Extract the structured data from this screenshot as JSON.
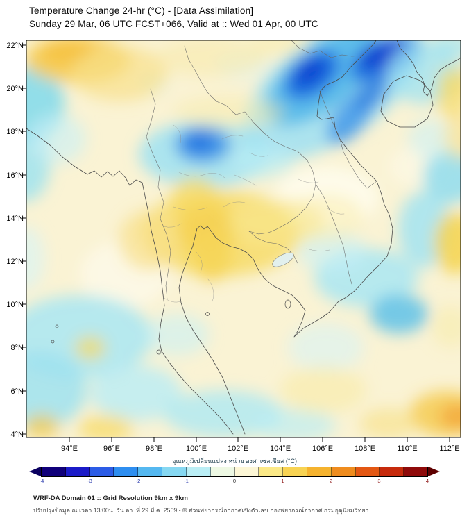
{
  "header": {
    "title": "Temperature Change 24-hr (°C) - [Data Assimilation]",
    "subtitle": "Sunday 29 Mar, 06 UTC FCST+066, Valid at :: Wed 01 Apr, 00 UTC"
  },
  "chart_data": {
    "type": "heatmap",
    "title": "Temperature Change 24-hr (°C) - [Data Assimilation]",
    "subtitle": "Sunday 29 Mar, 06 UTC FCST+066, Valid at :: Wed 01 Apr, 00 UTC",
    "region": "Thailand / Indochina (WRF-DA Domain 01)",
    "x_ticks": [
      "94°E",
      "96°E",
      "98°E",
      "100°E",
      "102°E",
      "104°E",
      "106°E",
      "108°E",
      "110°E",
      "112°E"
    ],
    "y_ticks": [
      "22°N",
      "20°N",
      "18°N",
      "16°N",
      "14°N",
      "12°N",
      "10°N",
      "8°N",
      "6°N",
      "4°N"
    ],
    "x_range_deg_e": [
      92,
      112.5
    ],
    "y_range_deg_n": [
      4,
      22.2
    ],
    "grid": false,
    "colorbar": {
      "label": "อุณหภูมิเปลี่ยนแปลง หน่วย องศาเซลเซียส (°C)",
      "min": -4,
      "max": 4,
      "tick_labels": [
        "-4",
        "-3",
        "-2",
        "-1",
        "0",
        "1",
        "2",
        "3",
        "4"
      ],
      "segment_colors": [
        "#10007a",
        "#1b1bc8",
        "#2c5ce6",
        "#2e8ef0",
        "#55b8f0",
        "#86d8f2",
        "#baeef5",
        "#eef9e4",
        "#fdf7d6",
        "#fbe987",
        "#f8d353",
        "#f5b32f",
        "#ef8c1e",
        "#e35713",
        "#c62a0c",
        "#8f0a0a"
      ],
      "left_arrow_color": "#0b0060",
      "right_arrow_color": "#5e0000",
      "negative_label_color": "#2233aa",
      "zero_label_color": "#333333",
      "positive_label_color": "#8b1111"
    },
    "anomaly_centers": [
      {
        "lon_e": 94.8,
        "lat_n": 21.7,
        "delta_c": 2.0,
        "note": "warm spot, NW corner (Myanmar)"
      },
      {
        "lon_e": 104.8,
        "lat_n": 21.3,
        "delta_c": -3.5,
        "note": "strong cooling, northern Vietnam"
      },
      {
        "lon_e": 108.6,
        "lat_n": 21.6,
        "delta_c": -3.5,
        "note": "strong cooling, Gulf of Tonkin"
      },
      {
        "lon_e": 107.5,
        "lat_n": 18.6,
        "delta_c": -2.0,
        "note": "cooling streak toward central Vietnam coast"
      },
      {
        "lon_e": 100.3,
        "lat_n": 17.5,
        "delta_c": -2.0,
        "note": "cooling, northern Thailand"
      },
      {
        "lon_e": 100.3,
        "lat_n": 13.8,
        "delta_c": 2.0,
        "note": "warming, central Thailand"
      },
      {
        "lon_e": 92.5,
        "lat_n": 19.3,
        "delta_c": -1.0,
        "note": "cool patch, Bay of Bengal (left edge)"
      },
      {
        "lon_e": 111.5,
        "lat_n": 15.8,
        "delta_c": -1.0,
        "note": "cool patch, right edge"
      },
      {
        "lon_e": 109.7,
        "lat_n": 9.5,
        "delta_c": -1.5,
        "note": "cool blob, South China Sea"
      },
      {
        "lon_e": 106.0,
        "lat_n": 11.5,
        "delta_c": -1.0,
        "note": "cool band, southern Vietnam/Cambodia"
      },
      {
        "lon_e": 94.5,
        "lat_n": 8.5,
        "delta_c": -1.0,
        "note": "cool area, Andaman Sea / lower left"
      },
      {
        "lon_e": 101.5,
        "lat_n": 4.8,
        "delta_c": -1.0,
        "note": "cool area, lower Malay peninsula"
      },
      {
        "lon_e": 111.8,
        "lat_n": 5.2,
        "delta_c": 1.5,
        "note": "warm patch, bottom-right corner"
      },
      {
        "lon_e": 112.3,
        "lat_n": 12.8,
        "delta_c": 1.0,
        "note": "warm patch, right edge"
      }
    ]
  },
  "footer": {
    "line1": "WRF-DA Domain 01 :: Grid Resolution 9km x 9km",
    "line2": "ปรับปรุงข้อมูล ณ เวลา 13:00น. วัน อา. ที่ 29 มี.ค. 2569 - © ส่วนพยากรณ์อากาศเชิงตัวเลข กองพยากรณ์อากาศ กรมอุตุนิยมวิทยา"
  }
}
